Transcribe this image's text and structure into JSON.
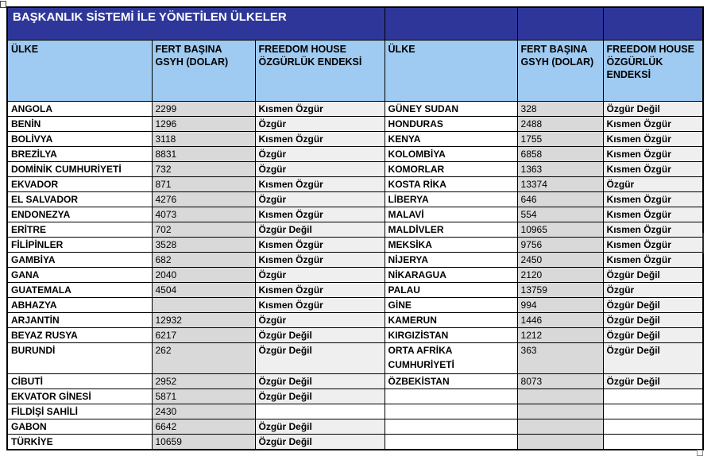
{
  "table": {
    "title": "BAŞKANLIK SİSTEMİ İLE YÖNETİLEN ÜLKELER",
    "columns": {
      "country": "ÜLKE",
      "gdp": "FERT BAŞINA GSYH (DOLAR)",
      "freedom": "FREEDOM HOUSE ÖZGÜRLÜK ENDEKSİ"
    },
    "colors": {
      "title_bg": "#2E3799",
      "header_bg": "#9FCAF1",
      "gdp_bg": "#D9D9D9",
      "freedom_bg": "#EFEFEF",
      "border": "#000000"
    },
    "rows": [
      {
        "left": {
          "country": "ANGOLA",
          "gdp": "2299",
          "freedom": "Kısmen Özgür"
        },
        "right": {
          "country": "GÜNEY SUDAN",
          "gdp": "328",
          "freedom": "Özgür Değil"
        },
        "tall": false
      },
      {
        "left": {
          "country": "BENİN",
          "gdp": "1296",
          "freedom": "Özgür"
        },
        "right": {
          "country": "HONDURAS",
          "gdp": "2488",
          "freedom": "Kısmen Özgür"
        },
        "tall": false
      },
      {
        "left": {
          "country": "BOLİVYA",
          "gdp": "3118",
          "freedom": "Kısmen Özgür"
        },
        "right": {
          "country": "KENYA",
          "gdp": "1755",
          "freedom": "Kısmen Özgür"
        },
        "tall": false
      },
      {
        "left": {
          "country": "BREZİLYA",
          "gdp": "8831",
          "freedom": "Özgür"
        },
        "right": {
          "country": "KOLOMBİYA",
          "gdp": "6858",
          "freedom": "Kısmen Özgür"
        },
        "tall": false
      },
      {
        "left": {
          "country": "DOMİNİK CUMHURİYETİ",
          "gdp": "732",
          "freedom": "Özgür"
        },
        "right": {
          "country": "KOMORLAR",
          "gdp": "1363",
          "freedom": "Kısmen Özgür"
        },
        "tall": false
      },
      {
        "left": {
          "country": "EKVADOR",
          "gdp": "871",
          "freedom": "Kısmen Özgür"
        },
        "right": {
          "country": "KOSTA RİKA",
          "gdp": "13374",
          "freedom": "Özgür"
        },
        "tall": false
      },
      {
        "left": {
          "country": "EL SALVADOR",
          "gdp": "4276",
          "freedom": "Özgür"
        },
        "right": {
          "country": "LİBERYA",
          "gdp": "646",
          "freedom": "Kısmen Özgür"
        },
        "tall": false
      },
      {
        "left": {
          "country": "ENDONEZYA",
          "gdp": "4073",
          "freedom": "Kısmen Özgür"
        },
        "right": {
          "country": "MALAVİ",
          "gdp": "554",
          "freedom": "Kısmen Özgür"
        },
        "tall": false
      },
      {
        "left": {
          "country": "ERİTRE",
          "gdp": "702",
          "freedom": "Özgür Değil"
        },
        "right": {
          "country": "MALDİVLER",
          "gdp": "10965",
          "freedom": "Kısmen Özgür"
        },
        "tall": false
      },
      {
        "left": {
          "country": "FİLİPİNLER",
          "gdp": "3528",
          "freedom": "Kısmen Özgür"
        },
        "right": {
          "country": "MEKSİKA",
          "gdp": "9756",
          "freedom": "Kısmen Özgür"
        },
        "tall": false
      },
      {
        "left": {
          "country": "GAMBİYA",
          "gdp": "682",
          "freedom": "Kısmen Özgür"
        },
        "right": {
          "country": "NİJERYA",
          "gdp": "2450",
          "freedom": "Kısmen Özgür"
        },
        "tall": false
      },
      {
        "left": {
          "country": "GANA",
          "gdp": "2040",
          "freedom": "Özgür"
        },
        "right": {
          "country": "NİKARAGUA",
          "gdp": "2120",
          "freedom": "Özgür Değil"
        },
        "tall": false
      },
      {
        "left": {
          "country": "GUATEMALA",
          "gdp": "4504",
          "freedom": "Kısmen Özgür"
        },
        "right": {
          "country": "PALAU",
          "gdp": "13759",
          "freedom": "Özgür"
        },
        "tall": false
      },
      {
        "left": {
          "country": "ABHAZYA",
          "gdp": "",
          "freedom": "Kısmen Özgür"
        },
        "right": {
          "country": "GİNE",
          "gdp": "994",
          "freedom": "Özgür Değil"
        },
        "tall": false
      },
      {
        "left": {
          "country": "ARJANTİN",
          "gdp": "12932",
          "freedom": "Özgür"
        },
        "right": {
          "country": "KAMERUN",
          "gdp": "1446",
          "freedom": "Özgür Değil"
        },
        "tall": false
      },
      {
        "left": {
          "country": "BEYAZ RUSYA",
          "gdp": "6217",
          "freedom": "Özgür Değil"
        },
        "right": {
          "country": "KIRGIZİSTAN",
          "gdp": "1212",
          "freedom": "Özgür Değil"
        },
        "tall": false
      },
      {
        "left": {
          "country": "BURUNDİ",
          "gdp": "262",
          "freedom": "Özgür Değil"
        },
        "right": {
          "country": "ORTA AFRİKA CUMHURİYETİ",
          "gdp": "363",
          "freedom": "Özgür Değil"
        },
        "tall": true
      },
      {
        "left": {
          "country": "CİBUTİ",
          "gdp": "2952",
          "freedom": "Özgür Değil"
        },
        "right": {
          "country": "ÖZBEKİSTAN",
          "gdp": "8073",
          "freedom": "Özgür Değil"
        },
        "tall": false
      },
      {
        "left": {
          "country": "EKVATOR GİNESİ",
          "gdp": "5871",
          "freedom": "Özgür Değil"
        },
        "right": {
          "country": "",
          "gdp": "",
          "freedom": ""
        },
        "tall": false
      },
      {
        "left": {
          "country": "FİLDİŞİ SAHİLİ",
          "gdp": "2430",
          "freedom": ""
        },
        "right": {
          "country": "",
          "gdp": "",
          "freedom": ""
        },
        "tall": false
      },
      {
        "left": {
          "country": "GABON",
          "gdp": "6642",
          "freedom": "Özgür Değil"
        },
        "right": {
          "country": "",
          "gdp": "",
          "freedom": ""
        },
        "tall": false
      },
      {
        "left": {
          "country": "TÜRKİYE",
          "gdp": "10659",
          "freedom": "Özgür Değil"
        },
        "right": {
          "country": "",
          "gdp": "",
          "freedom": ""
        },
        "tall": false
      }
    ]
  }
}
